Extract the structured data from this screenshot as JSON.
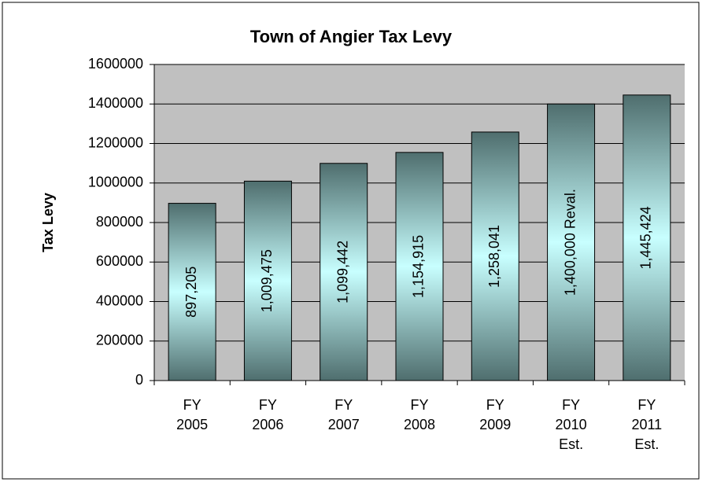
{
  "chart_data": {
    "type": "bar",
    "title": "Town of Angier Tax Levy",
    "y_label": "Tax Levy",
    "categories": [
      "FY 2005",
      "FY 2006",
      "FY 2007",
      "FY 2008",
      "FY 2009",
      "FY 2010 Est.",
      "FY 2011 Est."
    ],
    "values": [
      897205,
      1009475,
      1099442,
      1154915,
      1258041,
      1400000,
      1445424
    ],
    "value_labels": [
      "897,205",
      "1,009,475",
      "1,099,442",
      "1,154,915",
      "1,258,041",
      "1,400,000 Reval.",
      "1,445,424"
    ],
    "color": "#4f7373",
    "ylim": [
      0,
      1600000
    ],
    "yticks": [
      0,
      200000,
      400000,
      600000,
      800000,
      1000000,
      1200000,
      1400000,
      1600000
    ],
    "grid": true
  }
}
